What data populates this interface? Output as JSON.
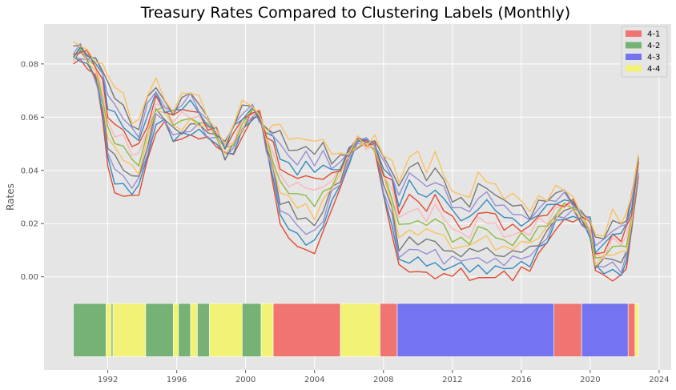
{
  "chart_data": {
    "type": "line",
    "title": "Treasury Rates Compared to Clustering Labels (Monthly)",
    "ylabel": "Rates",
    "xlabel": "",
    "xlim": [
      1988.3,
      2024.7
    ],
    "ylim": [
      -0.035,
      0.095
    ],
    "x_ticks": [
      1992,
      1996,
      2000,
      2004,
      2008,
      2012,
      2016,
      2020,
      2024
    ],
    "y_ticks": [
      0.0,
      0.02,
      0.04,
      0.06,
      0.08
    ],
    "y_tick_labels": [
      "0.00",
      "0.02",
      "0.04",
      "0.06",
      "0.08"
    ],
    "grid": true,
    "legend_placement": "top-right",
    "legend": [
      {
        "label": "4-1",
        "color": "#f07470"
      },
      {
        "label": "4-2",
        "color": "#76b276"
      },
      {
        "label": "4-3",
        "color": "#7474f0"
      },
      {
        "label": "4-4",
        "color": "#f2f276"
      }
    ],
    "series_colors": [
      "#e24a33",
      "#348abd",
      "#988ed5",
      "#777777",
      "#fbc15e",
      "#8eba42",
      "#ffb5b8",
      "#e24a33",
      "#348abd",
      "#988ed5",
      "#777777",
      "#fbc15e"
    ],
    "series_shape": {
      "x": [
        1990.0,
        1990.4,
        1990.8,
        1991.3,
        1991.7,
        1992.0,
        1992.4,
        1992.9,
        1993.4,
        1993.8,
        1994.3,
        1994.8,
        1995.3,
        1995.8,
        1996.3,
        1996.8,
        1997.3,
        1997.8,
        1998.3,
        1998.8,
        1999.3,
        1999.8,
        2000.4,
        2000.8,
        2001.2,
        2001.6,
        2002.0,
        2002.5,
        2003.0,
        2003.5,
        2004.0,
        2004.5,
        2005.0,
        2005.5,
        2006.0,
        2006.5,
        2007.0,
        2007.5,
        2008.0,
        2008.5,
        2008.9,
        2009.5,
        2010.0,
        2010.5,
        2011.0,
        2011.5,
        2012.0,
        2012.5,
        2013.0,
        2013.5,
        2014.0,
        2014.5,
        2015.0,
        2015.5,
        2016.0,
        2016.5,
        2017.0,
        2017.5,
        2018.0,
        2018.5,
        2019.0,
        2019.5,
        2020.0,
        2020.3,
        2020.8,
        2021.3,
        2021.8,
        2022.1,
        2022.4,
        2022.8
      ],
      "short": [
        0.08,
        0.082,
        0.08,
        0.074,
        0.06,
        0.04,
        0.033,
        0.031,
        0.03,
        0.031,
        0.042,
        0.056,
        0.058,
        0.052,
        0.051,
        0.052,
        0.053,
        0.052,
        0.051,
        0.045,
        0.046,
        0.052,
        0.06,
        0.062,
        0.048,
        0.035,
        0.018,
        0.016,
        0.012,
        0.01,
        0.009,
        0.015,
        0.027,
        0.033,
        0.044,
        0.05,
        0.05,
        0.048,
        0.03,
        0.018,
        0.003,
        0.002,
        0.001,
        0.002,
        0.001,
        0.0,
        0.001,
        0.001,
        0.0,
        0.0,
        0.0,
        0.0,
        0.0,
        0.0,
        0.003,
        0.004,
        0.008,
        0.012,
        0.018,
        0.021,
        0.023,
        0.021,
        0.015,
        0.001,
        0.001,
        0.0,
        0.0,
        0.004,
        0.015,
        0.039
      ],
      "long": [
        0.086,
        0.088,
        0.085,
        0.082,
        0.08,
        0.074,
        0.072,
        0.068,
        0.06,
        0.058,
        0.068,
        0.074,
        0.066,
        0.064,
        0.068,
        0.07,
        0.066,
        0.06,
        0.056,
        0.05,
        0.058,
        0.064,
        0.065,
        0.06,
        0.056,
        0.057,
        0.056,
        0.052,
        0.051,
        0.054,
        0.05,
        0.052,
        0.045,
        0.046,
        0.048,
        0.052,
        0.05,
        0.051,
        0.046,
        0.044,
        0.036,
        0.046,
        0.045,
        0.04,
        0.046,
        0.04,
        0.032,
        0.03,
        0.03,
        0.038,
        0.038,
        0.034,
        0.03,
        0.03,
        0.028,
        0.026,
        0.03,
        0.03,
        0.032,
        0.033,
        0.03,
        0.024,
        0.022,
        0.014,
        0.016,
        0.024,
        0.022,
        0.024,
        0.03,
        0.046
      ]
    },
    "cluster_bands": [
      {
        "label": "4-2",
        "start": 1990.0,
        "end": 1991.9
      },
      {
        "label": "4-4",
        "start": 1991.9,
        "end": 1992.2
      },
      {
        "label": "4-2",
        "start": 1992.2,
        "end": 1992.3
      },
      {
        "label": "4-4",
        "start": 1992.3,
        "end": 1994.2
      },
      {
        "label": "4-2",
        "start": 1994.2,
        "end": 1995.8
      },
      {
        "label": "4-4",
        "start": 1995.8,
        "end": 1996.1
      },
      {
        "label": "4-2",
        "start": 1996.1,
        "end": 1996.8
      },
      {
        "label": "4-4",
        "start": 1996.8,
        "end": 1997.2
      },
      {
        "label": "4-2",
        "start": 1997.2,
        "end": 1997.9
      },
      {
        "label": "4-4",
        "start": 1997.9,
        "end": 1999.8
      },
      {
        "label": "4-2",
        "start": 1999.8,
        "end": 2000.9
      },
      {
        "label": "4-4",
        "start": 2000.9,
        "end": 2001.6
      },
      {
        "label": "4-1",
        "start": 2001.6,
        "end": 2005.5
      },
      {
        "label": "4-4",
        "start": 2005.5,
        "end": 2007.8
      },
      {
        "label": "4-1",
        "start": 2007.8,
        "end": 2008.8
      },
      {
        "label": "4-3",
        "start": 2008.8,
        "end": 2017.9
      },
      {
        "label": "4-1",
        "start": 2017.9,
        "end": 2019.5
      },
      {
        "label": "4-3",
        "start": 2019.5,
        "end": 2022.2
      },
      {
        "label": "4-1",
        "start": 2022.2,
        "end": 2022.6
      },
      {
        "label": "4-4",
        "start": 2022.6,
        "end": 2022.8
      }
    ],
    "band_ylim": [
      -0.03,
      -0.01
    ]
  }
}
